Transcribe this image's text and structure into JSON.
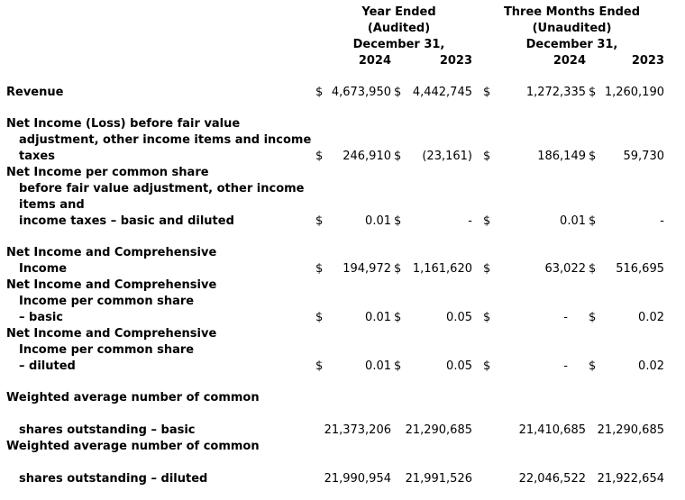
{
  "table": {
    "header": {
      "group1": {
        "line1": "Year Ended",
        "line2": "(Audited)",
        "line3": "December 31,",
        "col1": "2024",
        "col2": "2023"
      },
      "group2": {
        "line1": "Three Months Ended",
        "line2": "(Unaudited)",
        "line3": "December 31,",
        "col1": "2024",
        "col2": "2023"
      }
    },
    "rows": [
      {
        "label_lines": [
          {
            "text": "Revenue",
            "indent": 0
          }
        ],
        "cells": [
          {
            "d": "$",
            "v": "4,673,950"
          },
          {
            "d": "$",
            "v": "4,442,745"
          },
          {
            "d": "$",
            "v": "1,272,335"
          },
          {
            "d": "$",
            "v": "1,260,190"
          }
        ],
        "space_after": true
      },
      {
        "label_lines": [
          {
            "text": "Net Income (Loss) before fair value",
            "indent": 0
          },
          {
            "text": "adjustment, other income items and income",
            "indent": 1
          },
          {
            "text": "taxes",
            "indent": 1
          }
        ],
        "cells": [
          {
            "d": "$",
            "v": "246,910"
          },
          {
            "d": "$",
            "v": "(23,161)"
          },
          {
            "d": "$",
            "v": "186,149"
          },
          {
            "d": "$",
            "v": "59,730"
          }
        ],
        "space_after": false
      },
      {
        "label_lines": [
          {
            "text": "Net Income per common share",
            "indent": 0
          },
          {
            "text": "before fair value adjustment, other income",
            "indent": 1
          },
          {
            "text": "items and",
            "indent": 1
          },
          {
            "text": "income taxes – basic and diluted",
            "indent": 1
          }
        ],
        "cells": [
          {
            "d": "$",
            "v": "0.01"
          },
          {
            "d": "$",
            "v": "-"
          },
          {
            "d": "$",
            "v": "0.01"
          },
          {
            "d": "$",
            "v": "-"
          }
        ],
        "space_after": true
      },
      {
        "label_lines": [
          {
            "text": "Net Income and Comprehensive",
            "indent": 0
          },
          {
            "text": "Income",
            "indent": 1
          }
        ],
        "cells": [
          {
            "d": "$",
            "v": "194,972"
          },
          {
            "d": "$",
            "v": "1,161,620"
          },
          {
            "d": "$",
            "v": "63,022"
          },
          {
            "d": "$",
            "v": "516,695"
          }
        ],
        "space_after": false
      },
      {
        "label_lines": [
          {
            "text": "Net Income and Comprehensive",
            "indent": 0
          },
          {
            "text": "Income per common share",
            "indent": 1
          },
          {
            "text": "– basic",
            "indent": 1
          }
        ],
        "cells": [
          {
            "d": "$",
            "v": "0.01"
          },
          {
            "d": "$",
            "v": "0.05"
          },
          {
            "d": "$",
            "v": "-",
            "pr": 20
          },
          {
            "d": "$",
            "v": "0.02"
          }
        ],
        "space_after": false
      },
      {
        "label_lines": [
          {
            "text": "Net Income and Comprehensive",
            "indent": 0
          },
          {
            "text": "Income per common share",
            "indent": 1
          },
          {
            "text": "– diluted",
            "indent": 1
          }
        ],
        "cells": [
          {
            "d": "$",
            "v": "0.01"
          },
          {
            "d": "$",
            "v": "0.05"
          },
          {
            "d": "$",
            "v": "-",
            "pr": 20
          },
          {
            "d": "$",
            "v": "0.02"
          }
        ],
        "space_after": true
      },
      {
        "label_lines": [
          {
            "text": "Weighted average number of common",
            "indent": 0
          },
          {
            "text": "",
            "indent": 0
          },
          {
            "text": "shares outstanding – basic",
            "indent": 1
          }
        ],
        "cells": [
          {
            "v": "21,373,206"
          },
          {
            "v": "21,290,685"
          },
          {
            "v": "21,410,685"
          },
          {
            "v": "21,290,685"
          }
        ],
        "space_after": false
      },
      {
        "label_lines": [
          {
            "text": "Weighted average number of common",
            "indent": 0
          },
          {
            "text": "",
            "indent": 0
          },
          {
            "text": "shares outstanding – diluted",
            "indent": 1
          }
        ],
        "cells": [
          {
            "v": "21,990,954"
          },
          {
            "v": "21,991,526"
          },
          {
            "v": "22,046,522"
          },
          {
            "v": "21,922,654"
          }
        ],
        "space_after": false
      }
    ]
  },
  "colors": {
    "text": "#000000",
    "background": "#ffffff"
  }
}
